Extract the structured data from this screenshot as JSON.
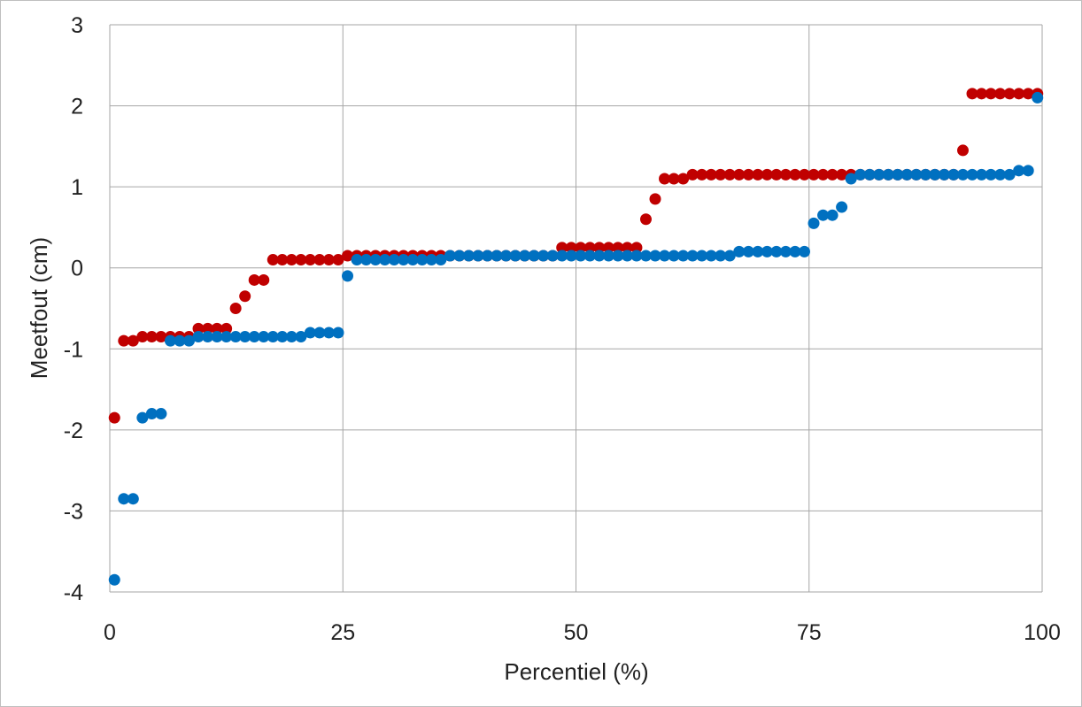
{
  "chart_data": {
    "type": "scatter",
    "title": "",
    "xlabel": "Percentiel (%)",
    "ylabel": "Meetfout (cm)",
    "xlim": [
      0,
      100
    ],
    "ylim": [
      -4,
      3
    ],
    "xticks": [
      0,
      25,
      50,
      75,
      100
    ],
    "xtick_labels": [
      "0",
      "25",
      "50",
      "75",
      "100"
    ],
    "yticks": [
      3,
      2,
      1,
      0,
      -1,
      -2,
      -3,
      -4
    ],
    "ytick_labels": [
      "3",
      "2",
      "1",
      "0",
      "-1",
      "-2",
      "-3",
      "-4"
    ],
    "grid": true,
    "legend": "none",
    "series": [
      {
        "color": "#C00000",
        "points": [
          [
            0.5,
            -1.85
          ],
          [
            1.5,
            -0.9
          ],
          [
            2.5,
            -0.9
          ],
          [
            3.5,
            -0.85
          ],
          [
            4.5,
            -0.85
          ],
          [
            5.5,
            -0.85
          ],
          [
            6.5,
            -0.85
          ],
          [
            7.5,
            -0.85
          ],
          [
            8.5,
            -0.85
          ],
          [
            9.5,
            -0.75
          ],
          [
            10.5,
            -0.75
          ],
          [
            11.5,
            -0.75
          ],
          [
            12.5,
            -0.75
          ],
          [
            13.5,
            -0.5
          ],
          [
            14.5,
            -0.35
          ],
          [
            15.5,
            -0.15
          ],
          [
            16.5,
            -0.15
          ],
          [
            17.5,
            0.1
          ],
          [
            18.5,
            0.1
          ],
          [
            19.5,
            0.1
          ],
          [
            20.5,
            0.1
          ],
          [
            21.5,
            0.1
          ],
          [
            22.5,
            0.1
          ],
          [
            23.5,
            0.1
          ],
          [
            24.5,
            0.1
          ],
          [
            25.5,
            0.15
          ],
          [
            26.5,
            0.15
          ],
          [
            27.5,
            0.15
          ],
          [
            28.5,
            0.15
          ],
          [
            29.5,
            0.15
          ],
          [
            30.5,
            0.15
          ],
          [
            31.5,
            0.15
          ],
          [
            32.5,
            0.15
          ],
          [
            33.5,
            0.15
          ],
          [
            34.5,
            0.15
          ],
          [
            35.5,
            0.15
          ],
          [
            36.5,
            0.15
          ],
          [
            37.5,
            0.15
          ],
          [
            38.5,
            0.15
          ],
          [
            39.5,
            0.15
          ],
          [
            40.5,
            0.15
          ],
          [
            41.5,
            0.15
          ],
          [
            42.5,
            0.15
          ],
          [
            43.5,
            0.15
          ],
          [
            44.5,
            0.15
          ],
          [
            45.5,
            0.15
          ],
          [
            46.5,
            0.15
          ],
          [
            47.5,
            0.15
          ],
          [
            48.5,
            0.25
          ],
          [
            49.5,
            0.25
          ],
          [
            50.5,
            0.25
          ],
          [
            51.5,
            0.25
          ],
          [
            52.5,
            0.25
          ],
          [
            53.5,
            0.25
          ],
          [
            54.5,
            0.25
          ],
          [
            55.5,
            0.25
          ],
          [
            56.5,
            0.25
          ],
          [
            57.5,
            0.6
          ],
          [
            58.5,
            0.85
          ],
          [
            59.5,
            1.1
          ],
          [
            60.5,
            1.1
          ],
          [
            61.5,
            1.1
          ],
          [
            62.5,
            1.15
          ],
          [
            63.5,
            1.15
          ],
          [
            64.5,
            1.15
          ],
          [
            65.5,
            1.15
          ],
          [
            66.5,
            1.15
          ],
          [
            67.5,
            1.15
          ],
          [
            68.5,
            1.15
          ],
          [
            69.5,
            1.15
          ],
          [
            70.5,
            1.15
          ],
          [
            71.5,
            1.15
          ],
          [
            72.5,
            1.15
          ],
          [
            73.5,
            1.15
          ],
          [
            74.5,
            1.15
          ],
          [
            75.5,
            1.15
          ],
          [
            76.5,
            1.15
          ],
          [
            77.5,
            1.15
          ],
          [
            78.5,
            1.15
          ],
          [
            79.5,
            1.15
          ],
          [
            80.5,
            1.15
          ],
          [
            81.5,
            1.15
          ],
          [
            82.5,
            1.15
          ],
          [
            83.5,
            1.15
          ],
          [
            84.5,
            1.15
          ],
          [
            85.5,
            1.15
          ],
          [
            86.5,
            1.15
          ],
          [
            87.5,
            1.15
          ],
          [
            88.5,
            1.15
          ],
          [
            89.5,
            1.15
          ],
          [
            90.5,
            1.15
          ],
          [
            91.5,
            1.45
          ],
          [
            92.5,
            2.15
          ],
          [
            93.5,
            2.15
          ],
          [
            94.5,
            2.15
          ],
          [
            95.5,
            2.15
          ],
          [
            96.5,
            2.15
          ],
          [
            97.5,
            2.15
          ],
          [
            98.5,
            2.15
          ],
          [
            99.5,
            2.15
          ]
        ]
      },
      {
        "color": "#0070C0",
        "points": [
          [
            0.5,
            -3.85
          ],
          [
            1.5,
            -2.85
          ],
          [
            2.5,
            -2.85
          ],
          [
            3.5,
            -1.85
          ],
          [
            4.5,
            -1.8
          ],
          [
            5.5,
            -1.8
          ],
          [
            6.5,
            -0.9
          ],
          [
            7.5,
            -0.9
          ],
          [
            8.5,
            -0.9
          ],
          [
            9.5,
            -0.85
          ],
          [
            10.5,
            -0.85
          ],
          [
            11.5,
            -0.85
          ],
          [
            12.5,
            -0.85
          ],
          [
            13.5,
            -0.85
          ],
          [
            14.5,
            -0.85
          ],
          [
            15.5,
            -0.85
          ],
          [
            16.5,
            -0.85
          ],
          [
            17.5,
            -0.85
          ],
          [
            18.5,
            -0.85
          ],
          [
            19.5,
            -0.85
          ],
          [
            20.5,
            -0.85
          ],
          [
            21.5,
            -0.8
          ],
          [
            22.5,
            -0.8
          ],
          [
            23.5,
            -0.8
          ],
          [
            24.5,
            -0.8
          ],
          [
            25.5,
            -0.1
          ],
          [
            26.5,
            0.1
          ],
          [
            27.5,
            0.1
          ],
          [
            28.5,
            0.1
          ],
          [
            29.5,
            0.1
          ],
          [
            30.5,
            0.1
          ],
          [
            31.5,
            0.1
          ],
          [
            32.5,
            0.1
          ],
          [
            33.5,
            0.1
          ],
          [
            34.5,
            0.1
          ],
          [
            35.5,
            0.1
          ],
          [
            36.5,
            0.15
          ],
          [
            37.5,
            0.15
          ],
          [
            38.5,
            0.15
          ],
          [
            39.5,
            0.15
          ],
          [
            40.5,
            0.15
          ],
          [
            41.5,
            0.15
          ],
          [
            42.5,
            0.15
          ],
          [
            43.5,
            0.15
          ],
          [
            44.5,
            0.15
          ],
          [
            45.5,
            0.15
          ],
          [
            46.5,
            0.15
          ],
          [
            47.5,
            0.15
          ],
          [
            48.5,
            0.15
          ],
          [
            49.5,
            0.15
          ],
          [
            50.5,
            0.15
          ],
          [
            51.5,
            0.15
          ],
          [
            52.5,
            0.15
          ],
          [
            53.5,
            0.15
          ],
          [
            54.5,
            0.15
          ],
          [
            55.5,
            0.15
          ],
          [
            56.5,
            0.15
          ],
          [
            57.5,
            0.15
          ],
          [
            58.5,
            0.15
          ],
          [
            59.5,
            0.15
          ],
          [
            60.5,
            0.15
          ],
          [
            61.5,
            0.15
          ],
          [
            62.5,
            0.15
          ],
          [
            63.5,
            0.15
          ],
          [
            64.5,
            0.15
          ],
          [
            65.5,
            0.15
          ],
          [
            66.5,
            0.15
          ],
          [
            67.5,
            0.2
          ],
          [
            68.5,
            0.2
          ],
          [
            69.5,
            0.2
          ],
          [
            70.5,
            0.2
          ],
          [
            71.5,
            0.2
          ],
          [
            72.5,
            0.2
          ],
          [
            73.5,
            0.2
          ],
          [
            74.5,
            0.2
          ],
          [
            75.5,
            0.55
          ],
          [
            76.5,
            0.65
          ],
          [
            77.5,
            0.65
          ],
          [
            78.5,
            0.75
          ],
          [
            79.5,
            1.1
          ],
          [
            80.5,
            1.15
          ],
          [
            81.5,
            1.15
          ],
          [
            82.5,
            1.15
          ],
          [
            83.5,
            1.15
          ],
          [
            84.5,
            1.15
          ],
          [
            85.5,
            1.15
          ],
          [
            86.5,
            1.15
          ],
          [
            87.5,
            1.15
          ],
          [
            88.5,
            1.15
          ],
          [
            89.5,
            1.15
          ],
          [
            90.5,
            1.15
          ],
          [
            91.5,
            1.15
          ],
          [
            92.5,
            1.15
          ],
          [
            93.5,
            1.15
          ],
          [
            94.5,
            1.15
          ],
          [
            95.5,
            1.15
          ],
          [
            96.5,
            1.15
          ],
          [
            97.5,
            1.2
          ],
          [
            98.5,
            1.2
          ],
          [
            99.5,
            2.1
          ]
        ]
      }
    ]
  }
}
